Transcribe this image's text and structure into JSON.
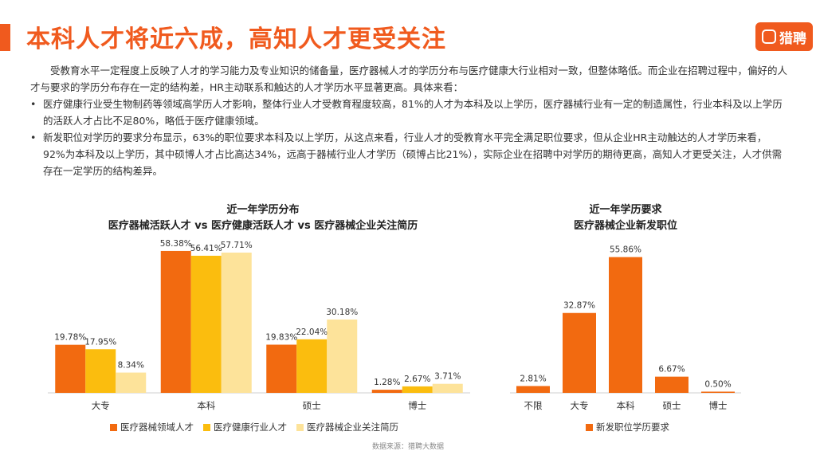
{
  "page": {
    "title": "本科人才将近六成，高知人才更受关注",
    "logo_mark": "猎聘",
    "logo_text": "猎聘",
    "intro": "受教育水平一定程度上反映了人才的学习能力及专业知识的储备量，医疗器械人才的学历分布与医疗健康大行业相对一致，但整体略低。而企业在招聘过程中，偏好的人才与要求的学历分布存在一定的结构差，HR主动联系和触达的人才学历水平显著更高。具体来看：",
    "bullets": [
      "医疗健康行业受生物制药等领域高学历人才影响，整体行业人才受教育程度较高，81%的人才为本科及以上学历，医疗器械行业有一定的制造属性，行业本科及以上学历的活跃人才占比不足80%，略低于医疗健康领域。",
      "新发职位对学历的要求分布显示，63%的职位要求本科及以上学历，从这点来看，行业人才的受教育水平完全满足职位要求，但从企业HR主动触达的人才学历来看，92%为本科及以上学历，其中硕博人才占比高达34%，远高于器械行业人才学历（硕博占比21%），实际企业在招聘中对学历的期待更高，高知人才更受关注，人才供需存在一定学历的结构差异。"
    ],
    "source": "数据来源：猎聘大数据"
  },
  "colors": {
    "accent": "#f05a1e",
    "series": [
      "#f26a10",
      "#fbbd0e",
      "#fde39a"
    ]
  },
  "chart_data": [
    {
      "type": "bar",
      "title": "近一年学历分布",
      "subtitle": "医疗器械活跃人才 vs 医疗健康活跃人才 vs 医疗器械企业关注简历",
      "categories": [
        "大专",
        "本科",
        "硕士",
        "博士"
      ],
      "series": [
        {
          "name": "医疗器械领域人才",
          "values": [
            19.78,
            58.38,
            19.83,
            1.28
          ]
        },
        {
          "name": "医疗健康行业人才",
          "values": [
            17.95,
            56.41,
            22.04,
            2.67
          ]
        },
        {
          "name": "医疗器械企业关注简历",
          "values": [
            8.34,
            57.71,
            30.18,
            3.71
          ]
        }
      ],
      "unit": "%",
      "ylim": [
        0,
        60
      ],
      "grid": false,
      "legend": "bottom"
    },
    {
      "type": "bar",
      "title": "近一年学历要求",
      "subtitle": "医疗器械企业新发职位",
      "categories": [
        "不限",
        "大专",
        "本科",
        "硕士",
        "博士"
      ],
      "series": [
        {
          "name": "新发职位学历要求",
          "values": [
            2.81,
            32.87,
            55.86,
            6.67,
            0.5
          ]
        }
      ],
      "unit": "%",
      "ylim": [
        0,
        60
      ],
      "grid": false,
      "legend": "bottom"
    }
  ]
}
